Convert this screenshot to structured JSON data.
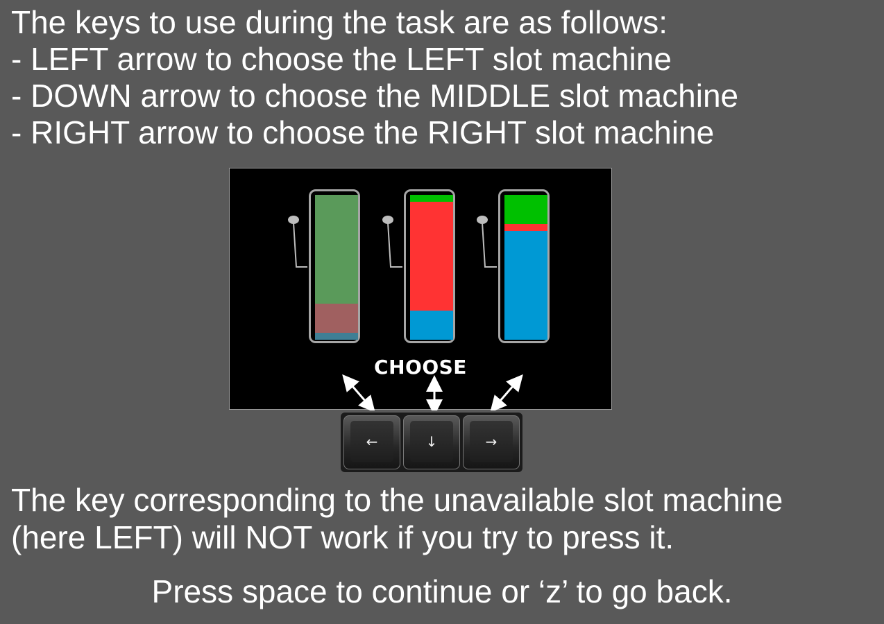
{
  "instructions": {
    "heading": "The keys to use during the task are as follows:",
    "lines": [
      "-  LEFT arrow to choose the LEFT slot machine",
      "-  DOWN arrow to choose the MIDDLE slot machine",
      "-  RIGHT arrow to choose the RIGHT slot machine"
    ]
  },
  "illustration": {
    "choose_label": "CHOOSE",
    "colors": {
      "green": "#00c000",
      "red": "#ff3333",
      "blue": "#0099d4",
      "green_faded": "#5a9a5a",
      "red_faded": "#a06060",
      "blue_faded": "#3f7f95",
      "background": "#595959"
    },
    "machines": [
      {
        "name": "left",
        "available": false,
        "segments": [
          {
            "color": "#5a9a5a",
            "fraction": 0.75
          },
          {
            "color": "#a06060",
            "fraction": 0.2
          },
          {
            "color": "#3f7f95",
            "fraction": 0.05
          }
        ]
      },
      {
        "name": "middle",
        "available": true,
        "segments": [
          {
            "color": "#00c000",
            "fraction": 0.05
          },
          {
            "color": "#ff3333",
            "fraction": 0.75
          },
          {
            "color": "#0099d4",
            "fraction": 0.2
          }
        ]
      },
      {
        "name": "right",
        "available": true,
        "segments": [
          {
            "color": "#00c000",
            "fraction": 0.2
          },
          {
            "color": "#ff3333",
            "fraction": 0.05
          },
          {
            "color": "#0099d4",
            "fraction": 0.75
          }
        ]
      }
    ],
    "keys": [
      {
        "icon": "left-arrow-icon",
        "glyph": "←"
      },
      {
        "icon": "down-arrow-icon",
        "glyph": "↓"
      },
      {
        "icon": "right-arrow-icon",
        "glyph": "→"
      }
    ]
  },
  "note": {
    "lines": [
      "The key corresponding to the unavailable slot machine",
      "(here LEFT) will NOT work if you try to press it."
    ]
  },
  "continue_text": "Press space to continue or ‘z’ to go back."
}
